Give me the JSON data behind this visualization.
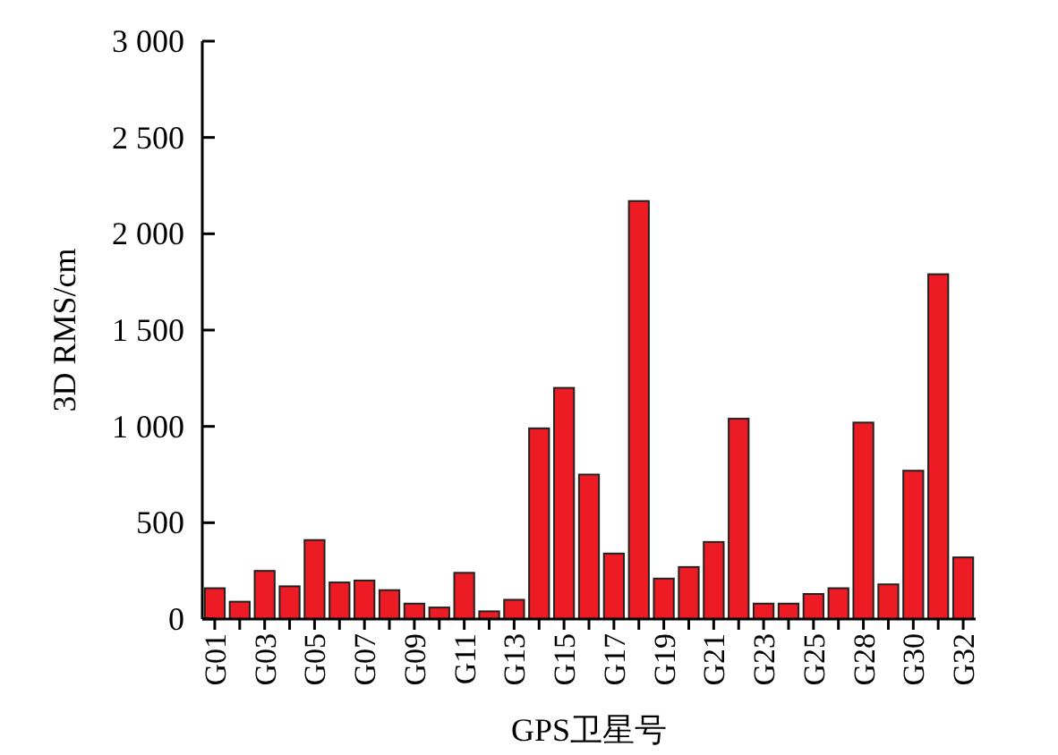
{
  "chart_data": {
    "type": "bar",
    "xlabel": "GPS卫星号",
    "ylabel": "3D RMS/cm",
    "categories": [
      "G01",
      null,
      "G03",
      null,
      "G05",
      null,
      "G07",
      null,
      "G09",
      null,
      "G11",
      null,
      "G13",
      null,
      "G15",
      null,
      "G17",
      null,
      "G19",
      null,
      "G21",
      null,
      "G23",
      null,
      "G25",
      null,
      "G28",
      null,
      "G30",
      null,
      "G32"
    ],
    "values": [
      160,
      90,
      250,
      170,
      410,
      190,
      200,
      150,
      80,
      60,
      240,
      40,
      100,
      990,
      1200,
      750,
      340,
      2170,
      210,
      270,
      400,
      1040,
      80,
      80,
      130,
      160,
      1020,
      180,
      770,
      1790,
      320
    ],
    "color": "#ed1c24",
    "ylim": [
      0,
      3000
    ],
    "yticks": [
      0,
      500,
      {
        "value": 1000,
        "label": "1 000"
      },
      {
        "value": 1500,
        "label": "1 500"
      },
      {
        "value": 2000,
        "label": "2 000"
      },
      {
        "value": 2500,
        "label": "2 500"
      },
      {
        "value": 3000,
        "label": "3 000"
      }
    ],
    "tick_labels": true
  }
}
